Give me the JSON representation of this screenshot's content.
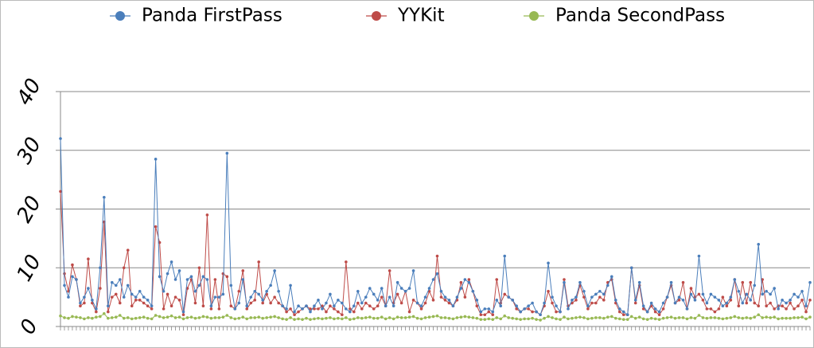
{
  "chart_data": {
    "type": "line",
    "categories": [
      null,
      null,
      null,
      null,
      null,
      null,
      null,
      null,
      null,
      null,
      null,
      null,
      null,
      null,
      null,
      null,
      null,
      null,
      null,
      null,
      null,
      null,
      null,
      null,
      null,
      null,
      null,
      null,
      null,
      null,
      null,
      null,
      null,
      null,
      null,
      null,
      null,
      null,
      null,
      null,
      null,
      null,
      null,
      null,
      null,
      null,
      null,
      null,
      null,
      null,
      null,
      null,
      null,
      null,
      null,
      null,
      null,
      null,
      null,
      null,
      null,
      null,
      null,
      null,
      null,
      null,
      null,
      null,
      null,
      null,
      null,
      null,
      null,
      null,
      null,
      null,
      null,
      null,
      null,
      null,
      null,
      null,
      null,
      null,
      null,
      null,
      null,
      null,
      null,
      null,
      null,
      null,
      null,
      null,
      null,
      null,
      null,
      null,
      null,
      null,
      null,
      null,
      null,
      null,
      null,
      null,
      null,
      null,
      null,
      null,
      null,
      null,
      null,
      null,
      null,
      null,
      null,
      null,
      null,
      null,
      null,
      null,
      null,
      null,
      null,
      null,
      null,
      null,
      null,
      null,
      null,
      null,
      null,
      null,
      null,
      null,
      null,
      null,
      null,
      null,
      null,
      null,
      null,
      null,
      null,
      null,
      null,
      null,
      null,
      null,
      null,
      null,
      null,
      null,
      null,
      null,
      null,
      null,
      null,
      null,
      null,
      null,
      null,
      null,
      null,
      null,
      null,
      null,
      null,
      null,
      null,
      null,
      null,
      null,
      null,
      null,
      null,
      null,
      null,
      null,
      null,
      null,
      null,
      null,
      null,
      null,
      null,
      null,
      null,
      null
    ],
    "series": [
      {
        "name": "Panda FirstPass",
        "color": "#4a7ebb",
        "values": [
          32,
          7,
          5,
          8.5,
          8,
          4,
          5,
          6.5,
          4.5,
          3,
          10,
          22,
          3.5,
          7.5,
          7,
          8,
          5,
          7,
          5.5,
          5,
          6,
          5,
          4.5,
          3.5,
          28.5,
          8.5,
          6,
          9,
          11,
          8,
          9.5,
          2.5,
          8,
          8.5,
          6,
          7,
          8.5,
          8,
          3.5,
          5,
          5,
          5.5,
          29.5,
          7,
          3,
          4,
          8,
          3.5,
          5,
          6,
          5.5,
          4.5,
          6,
          7,
          9.5,
          6,
          3.5,
          3,
          7,
          2.5,
          3.5,
          3,
          3.5,
          2.5,
          3.5,
          4.5,
          3,
          4,
          5.5,
          3.5,
          4.5,
          4,
          3,
          2.5,
          3.5,
          6,
          4,
          5,
          6.5,
          5.5,
          4.5,
          6.5,
          3.5,
          5,
          3.5,
          7.5,
          6.5,
          6,
          6.5,
          9.5,
          4,
          3.5,
          5,
          6.5,
          8,
          9,
          6,
          5,
          4.5,
          3.5,
          5,
          6.5,
          8,
          7.5,
          6,
          4.5,
          2.5,
          3,
          3,
          2.5,
          4.5,
          3.5,
          12,
          5,
          4.5,
          3.5,
          2.5,
          3,
          3.5,
          4,
          2.5,
          2,
          4,
          10.8,
          5,
          3.5,
          2.5,
          7.5,
          3,
          4.5,
          5,
          7.5,
          6,
          3.5,
          5,
          5.5,
          6,
          5.5,
          7,
          8.5,
          4.5,
          3,
          2.5,
          2,
          10,
          4.5,
          7.5,
          3.5,
          2.5,
          4,
          3,
          2.5,
          4,
          5,
          7.5,
          4,
          5,
          4.5,
          3,
          5.5,
          4.5,
          12,
          5.5,
          4,
          5.5,
          5,
          4.5,
          3.5,
          4,
          5,
          8,
          6,
          4,
          5.5,
          4.5,
          7,
          14,
          5.5,
          6,
          5.5,
          6.5,
          3,
          4.5,
          4,
          4.5,
          5.5,
          5,
          6,
          3.5,
          7.5
        ]
      },
      {
        "name": "YYKit",
        "color": "#be4b48",
        "values": [
          23,
          9,
          6,
          10.5,
          8,
          3.5,
          4,
          11.5,
          4,
          2.5,
          6.5,
          17.8,
          2.5,
          5,
          5.5,
          4,
          10,
          13,
          3.5,
          4.5,
          4.5,
          4,
          3.5,
          3,
          17,
          14.3,
          3,
          5.5,
          3.5,
          5,
          4.5,
          2,
          6.5,
          8,
          4,
          10,
          3.5,
          19,
          3,
          8,
          3,
          9,
          8.5,
          3.5,
          3,
          6,
          9.5,
          3,
          4,
          4.5,
          11,
          4,
          5.5,
          4,
          5,
          4,
          3.5,
          2.5,
          3,
          2,
          2.5,
          3,
          3.5,
          3,
          3,
          3,
          3.5,
          2.5,
          3.5,
          3,
          2.5,
          2,
          11,
          3,
          2.5,
          4,
          3,
          4,
          3.5,
          3,
          3.5,
          5,
          3.5,
          9.5,
          4,
          5.5,
          4,
          6,
          2.5,
          4.5,
          4,
          3,
          4,
          6,
          4.5,
          12,
          5,
          4.5,
          4,
          3.5,
          4.5,
          7.5,
          5,
          8,
          6,
          3.5,
          2,
          2,
          2.5,
          2,
          8,
          4,
          5.5,
          5,
          4.5,
          3,
          2.5,
          3,
          3,
          2.5,
          2.5,
          2,
          3.5,
          6,
          4,
          2.5,
          2.5,
          8,
          3.5,
          4,
          4.5,
          7,
          5,
          3,
          4,
          4,
          5,
          4.5,
          7.5,
          8,
          4,
          2.5,
          2,
          2,
          10,
          4,
          7,
          3,
          2.5,
          3.5,
          2.5,
          2,
          3,
          5,
          7,
          4,
          4.5,
          7.5,
          3,
          6.5,
          5,
          5.5,
          4.5,
          3,
          3,
          2.5,
          3,
          5,
          3.5,
          4.5,
          8,
          3.5,
          7.5,
          4,
          7.5,
          4,
          3.5,
          8,
          3.5,
          4,
          3,
          3.5,
          3.5,
          3,
          4,
          3,
          3.5,
          4.5,
          2.5,
          4.5
        ]
      },
      {
        "name": "Panda SecondPass",
        "color": "#98b954",
        "values": [
          1.8,
          1.5,
          1.4,
          1.7,
          1.6,
          1.5,
          1.3,
          1.5,
          1.4,
          1.6,
          1.7,
          2.2,
          1.4,
          1.5,
          1.6,
          1.9,
          1.4,
          1.5,
          1.3,
          1.4,
          1.5,
          1.6,
          1.4,
          1.3,
          1.9,
          1.7,
          1.5,
          1.6,
          1.8,
          1.5,
          1.6,
          1.3,
          1.5,
          1.6,
          1.4,
          1.5,
          1.7,
          1.6,
          1.4,
          1.5,
          1.5,
          1.6,
          1.9,
          1.5,
          1.3,
          1.4,
          1.6,
          1.3,
          1.5,
          1.5,
          1.6,
          1.4,
          1.5,
          1.6,
          1.7,
          1.5,
          1.3,
          1.2,
          1.5,
          1.2,
          1.3,
          1.2,
          1.4,
          1.2,
          1.3,
          1.4,
          1.3,
          1.4,
          1.5,
          1.3,
          1.4,
          1.3,
          1.5,
          1.2,
          1.3,
          1.5,
          1.4,
          1.5,
          1.6,
          1.4,
          1.4,
          1.6,
          1.3,
          1.5,
          1.3,
          1.6,
          1.5,
          1.5,
          1.6,
          1.7,
          1.4,
          1.3,
          1.5,
          1.6,
          1.7,
          1.8,
          1.5,
          1.5,
          1.4,
          1.3,
          1.5,
          1.6,
          1.7,
          1.6,
          1.5,
          1.4,
          1.2,
          1.2,
          1.3,
          1.2,
          1.5,
          1.3,
          1.8,
          1.5,
          1.4,
          1.3,
          1.2,
          1.3,
          1.3,
          1.4,
          1.2,
          1.1,
          1.4,
          1.7,
          1.5,
          1.3,
          1.2,
          1.6,
          1.3,
          1.4,
          1.5,
          1.6,
          1.5,
          1.3,
          1.4,
          1.5,
          1.5,
          1.4,
          1.6,
          1.7,
          1.4,
          1.3,
          1.2,
          1.2,
          1.7,
          1.4,
          1.6,
          1.3,
          1.2,
          1.4,
          1.3,
          1.2,
          1.4,
          1.5,
          1.6,
          1.4,
          1.5,
          1.5,
          1.3,
          1.5,
          1.4,
          1.9,
          1.5,
          1.4,
          1.5,
          1.5,
          1.4,
          1.3,
          1.4,
          1.5,
          1.7,
          1.5,
          1.4,
          1.5,
          1.4,
          1.6,
          2.0,
          1.5,
          1.6,
          1.5,
          1.6,
          1.3,
          1.4,
          1.4,
          1.4,
          1.5,
          1.5,
          1.6,
          1.3,
          1.6
        ]
      }
    ],
    "ylim": [
      0,
      40
    ],
    "yticks": [
      0,
      10,
      20,
      30,
      40
    ],
    "grid": true,
    "legend": "top"
  }
}
